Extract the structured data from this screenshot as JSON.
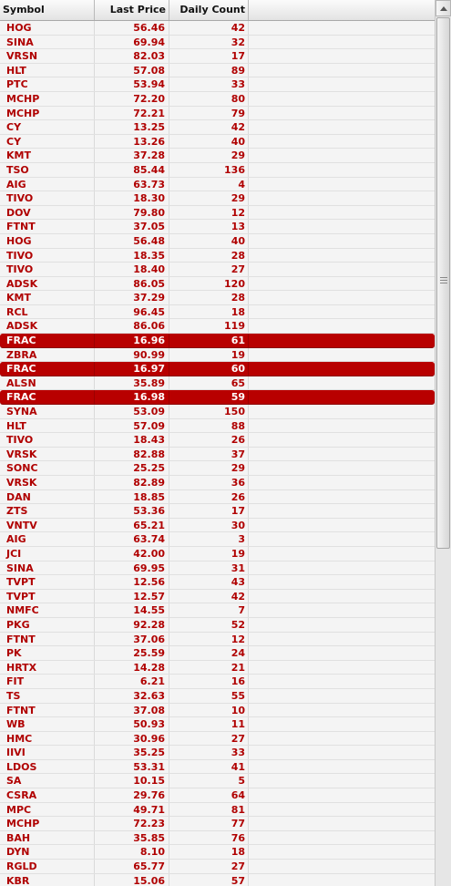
{
  "columns": {
    "symbol": "Symbol",
    "last_price": "Last Price",
    "daily_count": "Daily Count"
  },
  "rows": [
    {
      "symbol": "HOG",
      "price": "56.46",
      "count": "42",
      "highlight": false
    },
    {
      "symbol": "SINA",
      "price": "69.94",
      "count": "32",
      "highlight": false
    },
    {
      "symbol": "VRSN",
      "price": "82.03",
      "count": "17",
      "highlight": false
    },
    {
      "symbol": "HLT",
      "price": "57.08",
      "count": "89",
      "highlight": false
    },
    {
      "symbol": "PTC",
      "price": "53.94",
      "count": "33",
      "highlight": false
    },
    {
      "symbol": "MCHP",
      "price": "72.20",
      "count": "80",
      "highlight": false
    },
    {
      "symbol": "MCHP",
      "price": "72.21",
      "count": "79",
      "highlight": false
    },
    {
      "symbol": "CY",
      "price": "13.25",
      "count": "42",
      "highlight": false
    },
    {
      "symbol": "CY",
      "price": "13.26",
      "count": "40",
      "highlight": false
    },
    {
      "symbol": "KMT",
      "price": "37.28",
      "count": "29",
      "highlight": false
    },
    {
      "symbol": "TSO",
      "price": "85.44",
      "count": "136",
      "highlight": false
    },
    {
      "symbol": "AIG",
      "price": "63.73",
      "count": "4",
      "highlight": false
    },
    {
      "symbol": "TIVO",
      "price": "18.30",
      "count": "29",
      "highlight": false
    },
    {
      "symbol": "DOV",
      "price": "79.80",
      "count": "12",
      "highlight": false
    },
    {
      "symbol": "FTNT",
      "price": "37.05",
      "count": "13",
      "highlight": false
    },
    {
      "symbol": "HOG",
      "price": "56.48",
      "count": "40",
      "highlight": false
    },
    {
      "symbol": "TIVO",
      "price": "18.35",
      "count": "28",
      "highlight": false
    },
    {
      "symbol": "TIVO",
      "price": "18.40",
      "count": "27",
      "highlight": false
    },
    {
      "symbol": "ADSK",
      "price": "86.05",
      "count": "120",
      "highlight": false
    },
    {
      "symbol": "KMT",
      "price": "37.29",
      "count": "28",
      "highlight": false
    },
    {
      "symbol": "RCL",
      "price": "96.45",
      "count": "18",
      "highlight": false
    },
    {
      "symbol": "ADSK",
      "price": "86.06",
      "count": "119",
      "highlight": false
    },
    {
      "symbol": "FRAC",
      "price": "16.96",
      "count": "61",
      "highlight": true
    },
    {
      "symbol": "ZBRA",
      "price": "90.99",
      "count": "19",
      "highlight": false
    },
    {
      "symbol": "FRAC",
      "price": "16.97",
      "count": "60",
      "highlight": true
    },
    {
      "symbol": "ALSN",
      "price": "35.89",
      "count": "65",
      "highlight": false
    },
    {
      "symbol": "FRAC",
      "price": "16.98",
      "count": "59",
      "highlight": true
    },
    {
      "symbol": "SYNA",
      "price": "53.09",
      "count": "150",
      "highlight": false
    },
    {
      "symbol": "HLT",
      "price": "57.09",
      "count": "88",
      "highlight": false
    },
    {
      "symbol": "TIVO",
      "price": "18.43",
      "count": "26",
      "highlight": false
    },
    {
      "symbol": "VRSK",
      "price": "82.88",
      "count": "37",
      "highlight": false
    },
    {
      "symbol": "SONC",
      "price": "25.25",
      "count": "29",
      "highlight": false
    },
    {
      "symbol": "VRSK",
      "price": "82.89",
      "count": "36",
      "highlight": false
    },
    {
      "symbol": "DAN",
      "price": "18.85",
      "count": "26",
      "highlight": false
    },
    {
      "symbol": "ZTS",
      "price": "53.36",
      "count": "17",
      "highlight": false
    },
    {
      "symbol": "VNTV",
      "price": "65.21",
      "count": "30",
      "highlight": false
    },
    {
      "symbol": "AIG",
      "price": "63.74",
      "count": "3",
      "highlight": false
    },
    {
      "symbol": "JCI",
      "price": "42.00",
      "count": "19",
      "highlight": false
    },
    {
      "symbol": "SINA",
      "price": "69.95",
      "count": "31",
      "highlight": false
    },
    {
      "symbol": "TVPT",
      "price": "12.56",
      "count": "43",
      "highlight": false
    },
    {
      "symbol": "TVPT",
      "price": "12.57",
      "count": "42",
      "highlight": false
    },
    {
      "symbol": "NMFC",
      "price": "14.55",
      "count": "7",
      "highlight": false
    },
    {
      "symbol": "PKG",
      "price": "92.28",
      "count": "52",
      "highlight": false
    },
    {
      "symbol": "FTNT",
      "price": "37.06",
      "count": "12",
      "highlight": false
    },
    {
      "symbol": "PK",
      "price": "25.59",
      "count": "24",
      "highlight": false
    },
    {
      "symbol": "HRTX",
      "price": "14.28",
      "count": "21",
      "highlight": false
    },
    {
      "symbol": "FIT",
      "price": "6.21",
      "count": "16",
      "highlight": false
    },
    {
      "symbol": "TS",
      "price": "32.63",
      "count": "55",
      "highlight": false
    },
    {
      "symbol": "FTNT",
      "price": "37.08",
      "count": "10",
      "highlight": false
    },
    {
      "symbol": "WB",
      "price": "50.93",
      "count": "11",
      "highlight": false
    },
    {
      "symbol": "HMC",
      "price": "30.96",
      "count": "27",
      "highlight": false
    },
    {
      "symbol": "IIVI",
      "price": "35.25",
      "count": "33",
      "highlight": false
    },
    {
      "symbol": "LDOS",
      "price": "53.31",
      "count": "41",
      "highlight": false
    },
    {
      "symbol": "SA",
      "price": "10.15",
      "count": "5",
      "highlight": false
    },
    {
      "symbol": "CSRA",
      "price": "29.76",
      "count": "64",
      "highlight": false
    },
    {
      "symbol": "MPC",
      "price": "49.71",
      "count": "81",
      "highlight": false
    },
    {
      "symbol": "MCHP",
      "price": "72.23",
      "count": "77",
      "highlight": false
    },
    {
      "symbol": "BAH",
      "price": "35.85",
      "count": "76",
      "highlight": false
    },
    {
      "symbol": "DYN",
      "price": "8.10",
      "count": "18",
      "highlight": false
    },
    {
      "symbol": "RGLD",
      "price": "65.77",
      "count": "27",
      "highlight": false
    },
    {
      "symbol": "KBR",
      "price": "15.06",
      "count": "57",
      "highlight": false
    }
  ],
  "colors": {
    "text": "#b00000",
    "highlight_bg": "#b80000",
    "highlight_text": "#ffffff"
  }
}
